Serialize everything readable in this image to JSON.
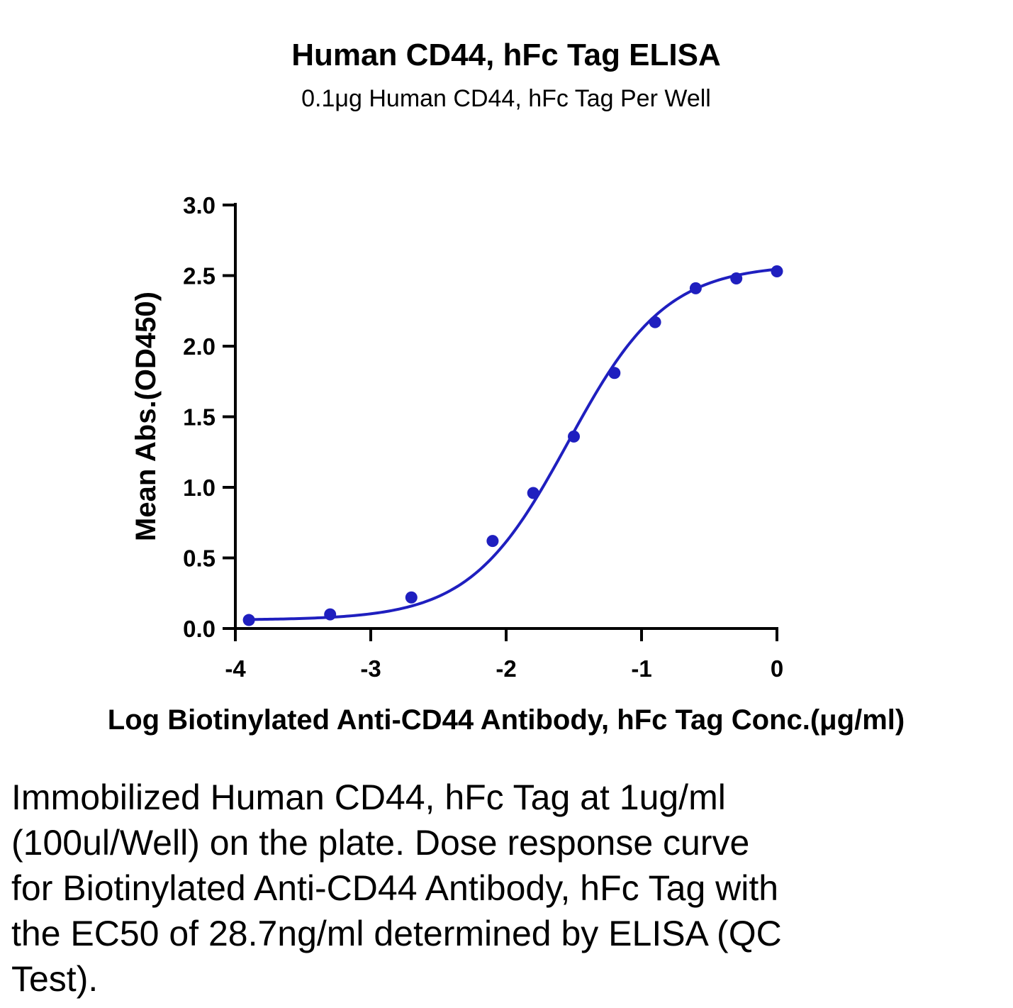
{
  "chart_data": {
    "type": "scatter",
    "title": "Human CD44, hFc Tag ELISA",
    "subtitle": "0.1μg Human CD44, hFc Tag Per Well",
    "xlabel": "Log Biotinylated Anti-CD44 Antibody, hFc Tag Conc.(μg/ml)",
    "ylabel": "Mean Abs.(OD450)",
    "xlim": [
      -4,
      0
    ],
    "ylim": [
      0,
      3.0
    ],
    "x_ticks": [
      "-4",
      "-3",
      "-2",
      "-1",
      "0"
    ],
    "y_ticks": [
      "0.0",
      "0.5",
      "1.0",
      "1.5",
      "2.0",
      "2.5",
      "3.0"
    ],
    "color": "#1f1fbf",
    "series": [
      {
        "x": [
          -3.9,
          -3.3,
          -2.7,
          -2.1,
          -1.8,
          -1.5,
          -1.2,
          -0.9,
          -0.6,
          -0.3,
          0.0
        ],
        "y": [
          0.06,
          0.1,
          0.22,
          0.62,
          0.96,
          1.36,
          1.81,
          2.17,
          2.41,
          2.48,
          2.53
        ]
      }
    ],
    "fit_curve": {
      "model": "4PL",
      "bottom": 0.06,
      "top": 2.58,
      "log_ec50": -1.542,
      "hill_slope": 1.2
    },
    "grid": false,
    "legend": "none"
  },
  "caption": "Immobilized Human CD44, hFc Tag at 1ug/ml (100ul/Well) on the plate. Dose response curve for Biotinylated Anti-CD44 Antibody, hFc Tag with the EC50 of 28.7ng/ml determined by ELISA (QC Test)."
}
